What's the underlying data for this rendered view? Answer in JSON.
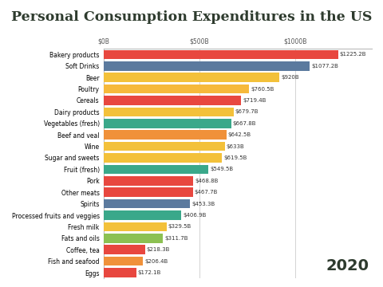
{
  "chart_data": {
    "type": "bar",
    "orientation": "horizontal",
    "title": "Personal Consumption Expenditures in the US",
    "annotation": "2020",
    "categories": [
      "Bakery products",
      "Soft Drinks",
      "Beer",
      "Poultry",
      "Cereals",
      "Dairy products",
      "Vegetables (fresh)",
      "Beef and veal",
      "Wine",
      "Sugar and sweets",
      "Fruit (fresh)",
      "Pork",
      "Other meats",
      "Spirits",
      "Processed fruits and veggies",
      "Fresh milk",
      "Fats and oils",
      "Coffee, tea",
      "Fish and seafood",
      "Eggs"
    ],
    "values": [
      1225.2,
      1077.2,
      920,
      760.5,
      719.4,
      679.7,
      667.8,
      642.5,
      633,
      619.5,
      549.5,
      468.8,
      467.7,
      453.3,
      406.9,
      329.5,
      311.7,
      218.3,
      206.4,
      172.1
    ],
    "value_labels": [
      "$1225.2B",
      "$1077.2B",
      "$920B",
      "$760.5B",
      "$719.4B",
      "$679.7B",
      "$667.8B",
      "$642.5B",
      "$633B",
      "$619.5B",
      "$549.5B",
      "$468.8B",
      "$467.7B",
      "$453.3B",
      "$406.9B",
      "$329.5B",
      "$311.7B",
      "$218.3B",
      "$206.4B",
      "$172.1B"
    ],
    "colors": [
      "#e8473f",
      "#5b7a9e",
      "#f3c13a",
      "#f6b93b",
      "#e8473f",
      "#f3c13a",
      "#3aa88a",
      "#f0913a",
      "#f3c13a",
      "#f3c13a",
      "#3aa88a",
      "#e8473f",
      "#e8473f",
      "#5b7a9e",
      "#3aa88a",
      "#f3c13a",
      "#8cc152",
      "#e8473f",
      "#f0913a",
      "#e8473f"
    ],
    "data_labels": true,
    "xlim": [
      0,
      1400
    ],
    "xticks": [
      {
        "value": 0,
        "label": "$0B"
      },
      {
        "value": 500,
        "label": "$500B"
      },
      {
        "value": 1000,
        "label": "$1000B"
      }
    ],
    "grid": true
  }
}
